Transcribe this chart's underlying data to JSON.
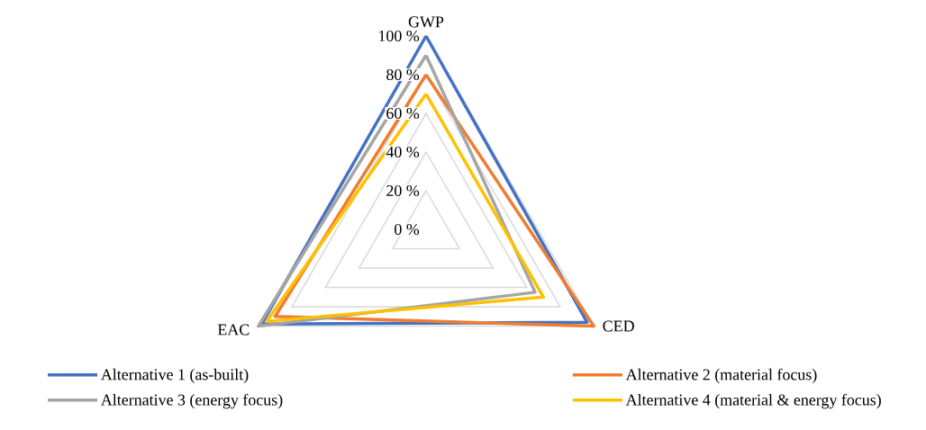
{
  "chart_data": {
    "type": "radar",
    "categories": [
      "GWP",
      "CED",
      "EAC"
    ],
    "series": [
      {
        "name": "Alternative 1 (as-built)",
        "color": "#4472c4",
        "values": [
          100,
          96,
          98
        ]
      },
      {
        "name": "Alternative 2 (material focus)",
        "color": "#ed7d31",
        "values": [
          80,
          100,
          90
        ]
      },
      {
        "name": "Alternative 3 (energy focus)",
        "color": "#a5a5a5",
        "values": [
          90,
          65,
          100
        ]
      },
      {
        "name": "Alternative 4 (material & energy focus)",
        "color": "#ffc000",
        "values": [
          70,
          70,
          95
        ]
      }
    ],
    "ylim": [
      0,
      100
    ],
    "yticks": [
      {
        "value": 0,
        "label": "0 %"
      },
      {
        "value": 20,
        "label": "20 %"
      },
      {
        "value": 40,
        "label": "40 %"
      },
      {
        "value": 60,
        "label": "60 %"
      },
      {
        "value": 80,
        "label": "80 %"
      },
      {
        "value": 100,
        "label": "100 %"
      }
    ],
    "grid": true,
    "legend": "bottom"
  }
}
